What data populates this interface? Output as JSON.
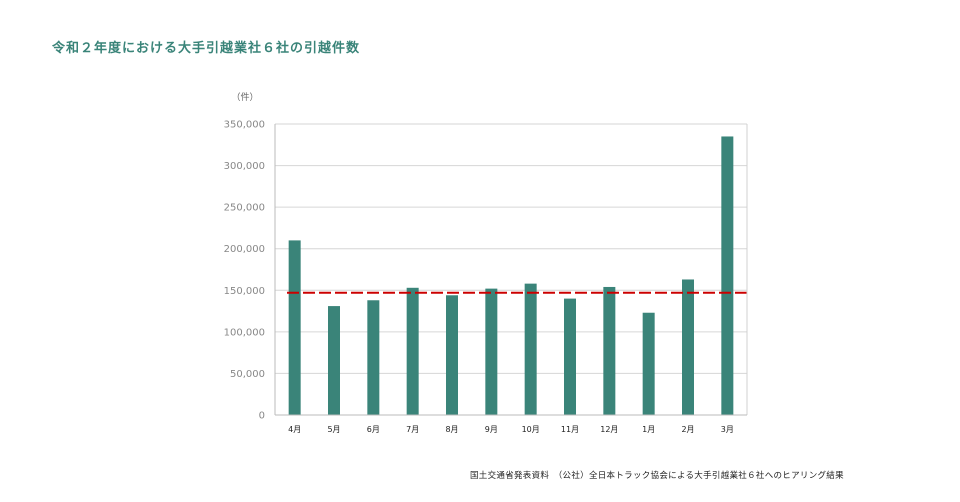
{
  "page": {
    "title": "令和２年度における大手引越業社６社の引越件数",
    "source": "国土交通省発表資料　（公社）全日本トラック協会による大手引越業社６社へのヒアリング結果"
  },
  "colors": {
    "title": "#3a8479",
    "bar": "#3a8479",
    "average_line": "#cc0000",
    "grid": "#d6d6d6"
  },
  "chart_data": {
    "type": "bar",
    "title": "令和２年度における大手引越業社６社の引越件数",
    "ylabel": "（件）",
    "xlabel": "",
    "categories": [
      "4月",
      "5月",
      "6月",
      "7月",
      "8月",
      "9月",
      "10月",
      "11月",
      "12月",
      "1月",
      "2月",
      "3月"
    ],
    "values": [
      210000,
      131000,
      138000,
      153000,
      144000,
      152000,
      158000,
      140000,
      154000,
      123000,
      163000,
      335000
    ],
    "ylim": [
      0,
      350000
    ],
    "yticks": [
      0,
      50000,
      100000,
      150000,
      200000,
      250000,
      300000,
      350000
    ],
    "ytick_labels": [
      "0",
      "50,000",
      "100,000",
      "150,000",
      "200,000",
      "250,000",
      "300,000",
      "350,000"
    ],
    "grid": true,
    "reference_line": {
      "style": "dashed",
      "value": 147000
    }
  }
}
